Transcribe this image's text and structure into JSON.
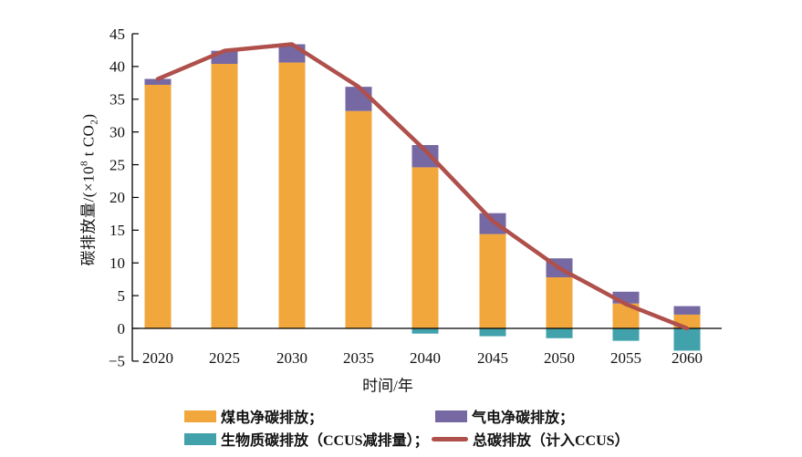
{
  "chart_data": {
    "type": "bar",
    "subtype": "stacked-bars-with-line-overlay",
    "title": "",
    "xlabel": "时间/年",
    "ylabel": {
      "prefix": "碳排放量/(×10",
      "sup": "8",
      "mid": " t CO",
      "sub": "2",
      "suffix": ")"
    },
    "categories": [
      "2020",
      "2025",
      "2030",
      "2035",
      "2040",
      "2045",
      "2050",
      "2055",
      "2060"
    ],
    "series": [
      {
        "name": "煤电净碳排放",
        "type": "bar",
        "stack": "positive",
        "color": "#F1A73B",
        "values": [
          37.2,
          40.4,
          40.6,
          33.2,
          24.6,
          14.4,
          7.8,
          3.8,
          2.1
        ]
      },
      {
        "name": "气电净碳排放",
        "type": "bar",
        "stack": "positive",
        "color": "#7668A2",
        "values": [
          0.9,
          2.0,
          2.8,
          3.7,
          3.4,
          3.2,
          2.9,
          1.8,
          1.3
        ]
      },
      {
        "name": "生物质碳排放（CCUS减排量）",
        "type": "bar",
        "stack": "negative",
        "color": "#42A2AC",
        "values": [
          0,
          0,
          0,
          0,
          -0.8,
          -1.2,
          -1.5,
          -1.9,
          -3.4
        ]
      },
      {
        "name": "总碳排放（计入CCUS）",
        "type": "line",
        "color": "#AF504C",
        "values": [
          38.1,
          42.4,
          43.4,
          36.9,
          27.2,
          16.4,
          9.2,
          3.7,
          0.0
        ]
      }
    ],
    "ylim": [
      -5,
      45
    ],
    "y_ticks": [
      -5,
      0,
      5,
      10,
      15,
      20,
      25,
      30,
      35,
      40,
      45
    ],
    "grid": false,
    "legend_position": "bottom",
    "axis_color": "#000000"
  },
  "legend": {
    "items": [
      {
        "label": "煤电净碳排放；",
        "swatch": "rect",
        "color": "#F1A73B"
      },
      {
        "label": "气电净碳排放；",
        "swatch": "rect",
        "color": "#7668A2"
      },
      {
        "label": "生物质碳排放（CCUS减排量）；",
        "swatch": "rect",
        "color": "#42A2AC"
      },
      {
        "label": "总碳排放（计入CCUS）",
        "swatch": "line",
        "color": "#AF504C"
      }
    ]
  }
}
